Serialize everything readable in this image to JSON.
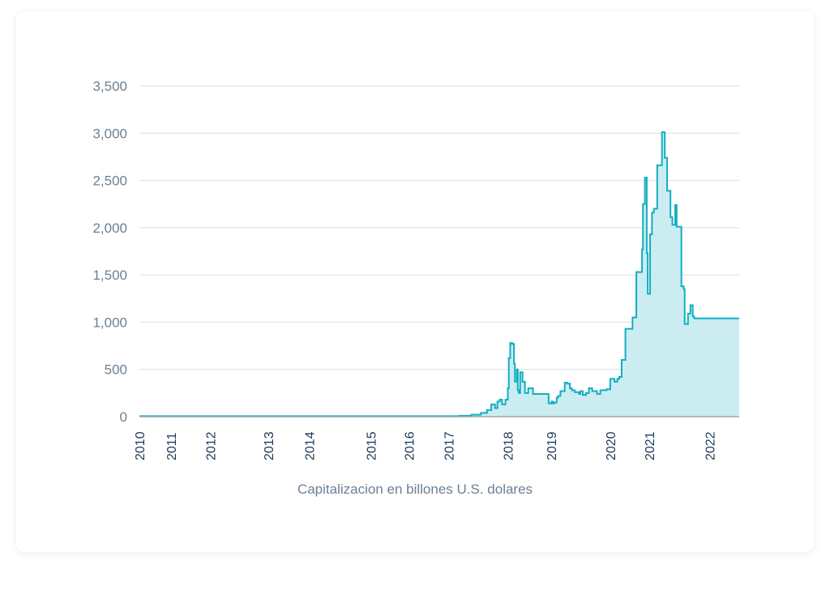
{
  "chart_data": {
    "type": "area",
    "title": "",
    "xlabel": "Capitalizacion en billones U.S. dolares",
    "ylabel": "",
    "xlim": [
      2010.0,
      2022.65
    ],
    "ylim": [
      0,
      3500
    ],
    "grid": true,
    "yticks": [
      0,
      500,
      1000,
      1500,
      2000,
      2500,
      3000,
      3500
    ],
    "ytick_labels": [
      "0",
      "500",
      "1,000",
      "1,500",
      "2,000",
      "2,500",
      "3,000",
      "3,500"
    ],
    "xticks": [
      2010.0,
      2010.67,
      2011.5,
      2012.72,
      2013.58,
      2014.88,
      2015.68,
      2016.52,
      2017.77,
      2018.68,
      2019.93,
      2020.75,
      2022.03
    ],
    "xtick_labels": [
      "2010",
      "2011",
      "2012",
      "2013",
      "2014",
      "2015",
      "2016",
      "2017",
      "2018",
      "2019",
      "2020",
      "2021",
      "2022"
    ],
    "colors": {
      "line": "#13aec2",
      "fill": "#cbedf1",
      "grid": "#d9dfe4",
      "axis": "#9aa8b4"
    },
    "series": [
      {
        "name": "Capitalizacion",
        "x": [
          2010.0,
          2016.75,
          2017.0,
          2017.2,
          2017.33,
          2017.42,
          2017.5,
          2017.55,
          2017.6,
          2017.65,
          2017.72,
          2017.77,
          2017.79,
          2017.82,
          2017.86,
          2017.9,
          2017.92,
          2017.96,
          2017.98,
          2018.0,
          2018.03,
          2018.08,
          2018.13,
          2018.2,
          2018.23,
          2018.3,
          2018.4,
          2018.5,
          2018.63,
          2018.69,
          2018.72,
          2018.75,
          2018.8,
          2018.83,
          2018.88,
          2018.97,
          2019.02,
          2019.08,
          2019.12,
          2019.18,
          2019.27,
          2019.3,
          2019.35,
          2019.42,
          2019.48,
          2019.55,
          2019.65,
          2019.72,
          2019.85,
          2019.93,
          2020.02,
          2020.08,
          2020.12,
          2020.17,
          2020.25,
          2020.4,
          2020.48,
          2020.6,
          2020.62,
          2020.66,
          2020.7,
          2020.72,
          2020.77,
          2020.81,
          2020.85,
          2020.92,
          2021.02,
          2021.08,
          2021.13,
          2021.2,
          2021.24,
          2021.3,
          2021.33,
          2021.43,
          2021.48,
          2021.5,
          2021.57,
          2021.62,
          2021.67,
          2021.7,
          2021.72,
          2021.77,
          2021.82,
          2021.87,
          2021.92,
          2022.02,
          2022.05,
          2022.1,
          2022.15,
          2022.22,
          2022.27,
          2022.32,
          2022.35,
          2022.42,
          2022.47,
          2022.54,
          2022.58,
          2022.6,
          2022.65
        ],
        "values": [
          5,
          10,
          20,
          40,
          70,
          130,
          90,
          160,
          180,
          130,
          180,
          300,
          620,
          780,
          770,
          560,
          370,
          500,
          280,
          250,
          470,
          370,
          250,
          300,
          300,
          240,
          240,
          240,
          140,
          160,
          140,
          150,
          200,
          220,
          270,
          360,
          350,
          300,
          280,
          260,
          240,
          270,
          230,
          250,
          300,
          270,
          240,
          280,
          290,
          400,
          370,
          400,
          420,
          600,
          930,
          1050,
          1530,
          1770,
          2250,
          2530,
          1730,
          1300,
          1930,
          2160,
          2200,
          2660,
          3010,
          2740,
          2390,
          2110,
          2030,
          2240,
          2010,
          1380,
          1350,
          980,
          1090,
          1180,
          1060,
          1040,
          1040,
          1040,
          1040,
          1040,
          1040,
          1040,
          1040,
          1040,
          1040,
          1040,
          1040,
          1040,
          1040,
          1040,
          1040,
          1040,
          1040,
          1040,
          1040
        ]
      }
    ]
  }
}
